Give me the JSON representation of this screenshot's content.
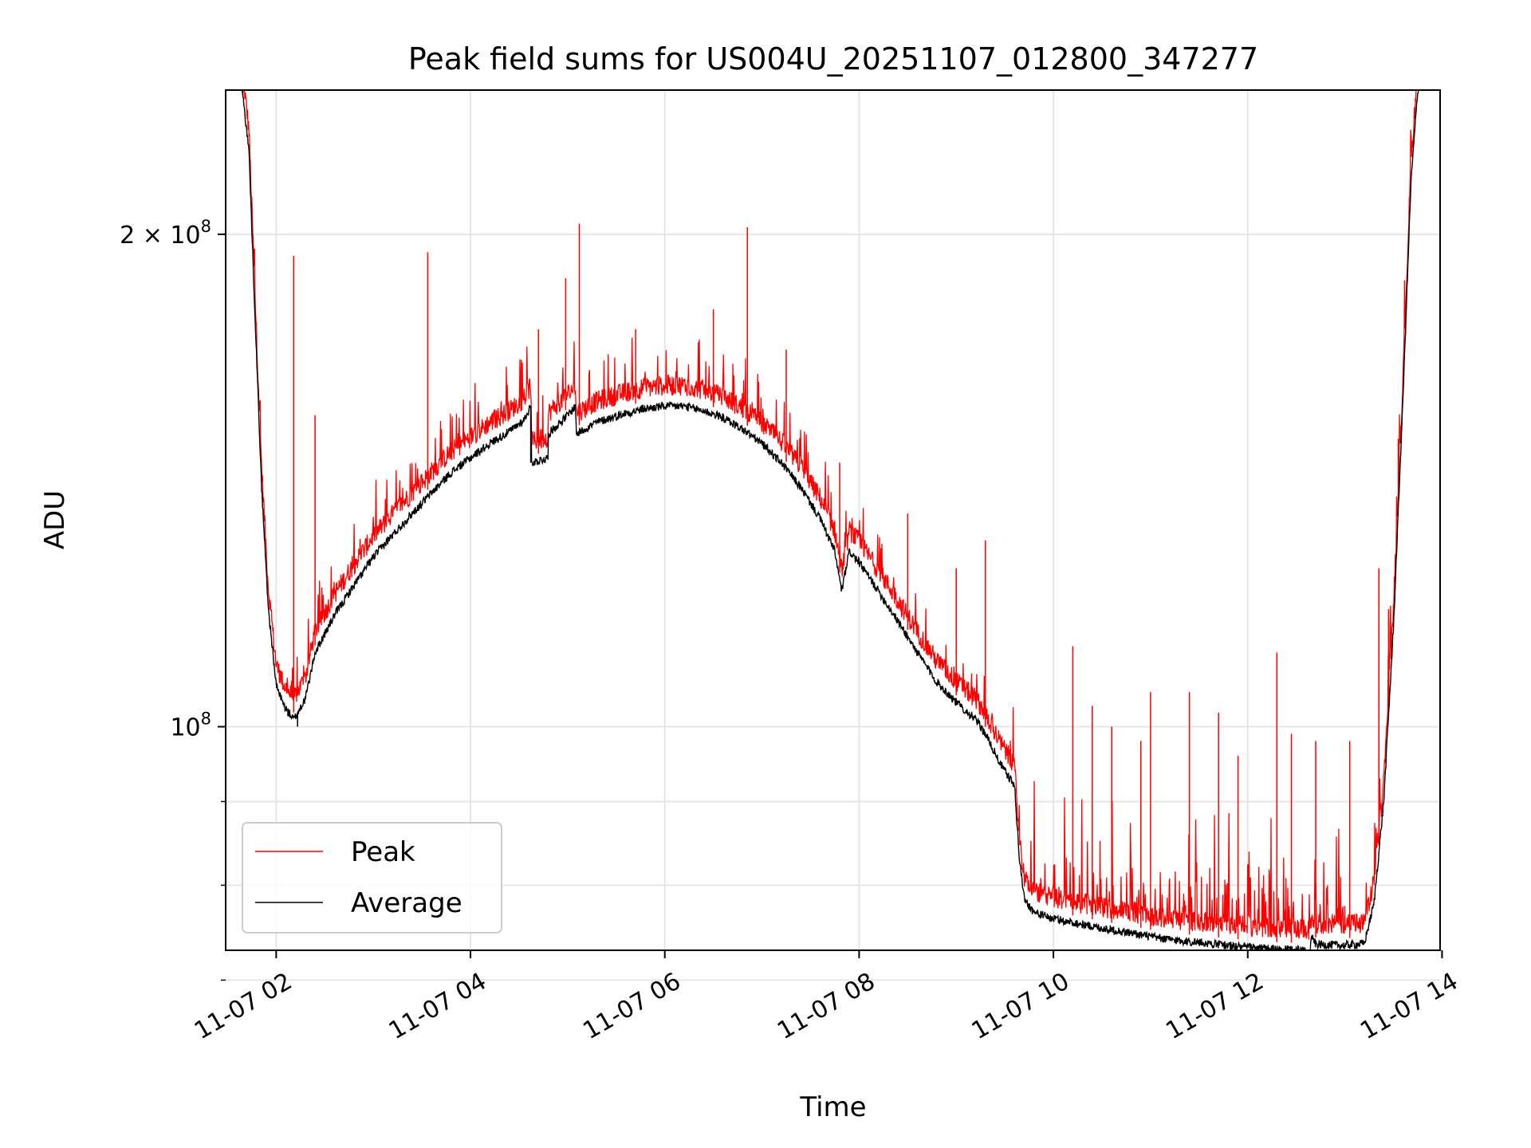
{
  "chart_data": {
    "type": "line",
    "title": "Peak field sums for US004U_20251107_012800_347277",
    "xlabel": "Time",
    "ylabel": "ADU",
    "yscale": "log",
    "x_unit": "hours since 2025-11-07 00:00",
    "xlim": [
      1.48,
      13.98
    ],
    "ylim": [
      73000000,
      245000000
    ],
    "x_ticks": [
      {
        "value": 2,
        "label": "11-07 02"
      },
      {
        "value": 4,
        "label": "11-07 04"
      },
      {
        "value": 6,
        "label": "11-07 06"
      },
      {
        "value": 8,
        "label": "11-07 08"
      },
      {
        "value": 10,
        "label": "11-07 10"
      },
      {
        "value": 12,
        "label": "11-07 12"
      },
      {
        "value": 14,
        "label": "11-07 14"
      }
    ],
    "y_major_ticks": [
      {
        "value": 100000000,
        "base": "10",
        "exp": "8",
        "mantissa": ""
      },
      {
        "value": 200000000,
        "base": "10",
        "exp": "8",
        "mantissa": "2 × "
      }
    ],
    "y_minor_ticks": [
      70000000,
      80000000,
      90000000
    ],
    "grid": true,
    "legend": {
      "location": "lower-left",
      "entries": [
        {
          "label": "Peak",
          "color": "#ff0000"
        },
        {
          "label": "Average",
          "color": "#000000"
        }
      ]
    },
    "series": [
      {
        "name": "Average",
        "color": "#000000",
        "points": [
          [
            1.48,
            245000000
          ],
          [
            1.65,
            245000000
          ],
          [
            1.72,
            225000000
          ],
          [
            1.78,
            180000000
          ],
          [
            1.85,
            140000000
          ],
          [
            1.92,
            118000000
          ],
          [
            2.0,
            106000000
          ],
          [
            2.08,
            103000000
          ],
          [
            2.18,
            101000000
          ],
          [
            2.3,
            104000000
          ],
          [
            2.4,
            111000000
          ],
          [
            2.6,
            117000000
          ],
          [
            2.8,
            122000000
          ],
          [
            3.0,
            127000000
          ],
          [
            3.2,
            131000000
          ],
          [
            3.4,
            135000000
          ],
          [
            3.6,
            139000000
          ],
          [
            3.8,
            143000000
          ],
          [
            4.0,
            146000000
          ],
          [
            4.2,
            149000000
          ],
          [
            4.4,
            151500000
          ],
          [
            4.55,
            154000000
          ],
          [
            4.62,
            157000000
          ],
          [
            4.63,
            145000000
          ],
          [
            4.8,
            146000000
          ],
          [
            4.8,
            151000000
          ],
          [
            5.0,
            155000000
          ],
          [
            5.08,
            157000000
          ],
          [
            5.09,
            151000000
          ],
          [
            5.3,
            153500000
          ],
          [
            5.6,
            155500000
          ],
          [
            5.8,
            156500000
          ],
          [
            6.0,
            157000000
          ],
          [
            6.2,
            157000000
          ],
          [
            6.4,
            156000000
          ],
          [
            6.6,
            154500000
          ],
          [
            6.8,
            152000000
          ],
          [
            7.0,
            149000000
          ],
          [
            7.2,
            145000000
          ],
          [
            7.4,
            140000000
          ],
          [
            7.6,
            134000000
          ],
          [
            7.75,
            128000000
          ],
          [
            7.82,
            121000000
          ],
          [
            7.9,
            128000000
          ],
          [
            8.0,
            126000000
          ],
          [
            8.2,
            121000000
          ],
          [
            8.4,
            116000000
          ],
          [
            8.6,
            111000000
          ],
          [
            8.8,
            106500000
          ],
          [
            9.0,
            103500000
          ],
          [
            9.2,
            101000000
          ],
          [
            9.3,
            99000000
          ],
          [
            9.45,
            95000000
          ],
          [
            9.6,
            92000000
          ],
          [
            9.65,
            83000000
          ],
          [
            9.7,
            78500000
          ],
          [
            9.8,
            77000000
          ],
          [
            10.0,
            76300000
          ],
          [
            10.2,
            75900000
          ],
          [
            10.5,
            75300000
          ],
          [
            10.8,
            74800000
          ],
          [
            11.0,
            74400000
          ],
          [
            11.2,
            74100000
          ],
          [
            11.5,
            73800000
          ],
          [
            11.8,
            73500000
          ],
          [
            12.0,
            73300000
          ],
          [
            12.3,
            73100000
          ],
          [
            12.6,
            73000000
          ],
          [
            12.64,
            72800000
          ],
          [
            12.66,
            74500000
          ],
          [
            12.7,
            73600000
          ],
          [
            13.0,
            73500000
          ],
          [
            13.2,
            73700000
          ],
          [
            13.3,
            78000000
          ],
          [
            13.4,
            90000000
          ],
          [
            13.5,
            115000000
          ],
          [
            13.6,
            160000000
          ],
          [
            13.68,
            215000000
          ],
          [
            13.75,
            245000000
          ],
          [
            13.98,
            245000000
          ]
        ]
      },
      {
        "name": "Peak",
        "color": "#ff0000",
        "spikes": [
          [
            2.18,
            194000000
          ],
          [
            3.56,
            195000000
          ],
          [
            5.12,
            203000000
          ],
          [
            6.85,
            202000000
          ],
          [
            2.4,
            155000000
          ],
          [
            4.7,
            175000000
          ],
          [
            4.98,
            188000000
          ],
          [
            6.5,
            180000000
          ],
          [
            5.7,
            175000000
          ],
          [
            7.25,
            170000000
          ],
          [
            7.8,
            145000000
          ],
          [
            8.5,
            135000000
          ],
          [
            9.3,
            130000000
          ],
          [
            10.2,
            112000000
          ],
          [
            10.6,
            100000000
          ],
          [
            11.0,
            105000000
          ],
          [
            11.4,
            105000000
          ],
          [
            11.7,
            102000000
          ],
          [
            12.3,
            111000000
          ],
          [
            12.7,
            98000000
          ],
          [
            13.05,
            98000000
          ],
          [
            13.35,
            125000000
          ],
          [
            13.45,
            118000000
          ],
          [
            13.55,
            150000000
          ],
          [
            9.0,
            125000000
          ],
          [
            10.9,
            98000000
          ],
          [
            12.45,
            99000000
          ],
          [
            11.9,
            96000000
          ],
          [
            10.4,
            103000000
          ]
        ]
      }
    ]
  }
}
